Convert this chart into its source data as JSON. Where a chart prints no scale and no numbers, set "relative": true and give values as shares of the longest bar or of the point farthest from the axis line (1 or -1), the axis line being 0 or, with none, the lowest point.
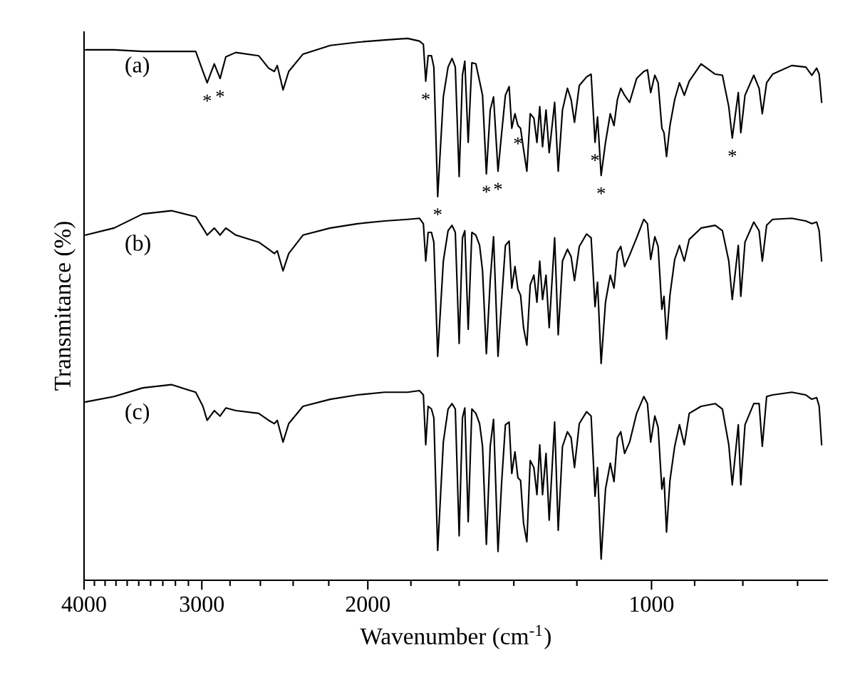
{
  "chart_data": {
    "type": "line",
    "xlabel": "Wavenumber (cm$^{-1}$)",
    "ylabel": "Transmitance (%)",
    "relative": true,
    "log": "x",
    "xlim": [
      4000,
      650
    ],
    "xticks": [
      4000,
      {
        "value": 3900,
        "label": null
      },
      {
        "value": 3800,
        "label": null
      },
      {
        "value": 3700,
        "label": null
      },
      {
        "value": 3600,
        "label": null
      },
      {
        "value": 3500,
        "label": null
      },
      {
        "value": 3400,
        "label": null
      },
      {
        "value": 3300,
        "label": null
      },
      {
        "value": 3200,
        "label": null
      },
      {
        "value": 3100,
        "label": null
      },
      3000,
      {
        "value": 2800,
        "label": null
      },
      {
        "value": 2600,
        "label": null
      },
      {
        "value": 2400,
        "label": null
      },
      {
        "value": 2200,
        "label": null
      },
      2000,
      {
        "value": 1800,
        "label": null
      },
      {
        "value": 1600,
        "label": null
      },
      {
        "value": 1400,
        "label": null
      },
      {
        "value": 1200,
        "label": null
      },
      1000,
      {
        "value": 900,
        "label": null
      },
      {
        "value": 800,
        "label": null
      },
      {
        "value": 700,
        "label": null
      }
    ],
    "x": [
      3986,
      3717,
      3466,
      3232,
      3045,
      2992,
      2961,
      2910,
      2869,
      2829,
      2761,
      2611,
      2548,
      2513,
      2495,
      2460,
      2426,
      2343,
      2192,
      2051,
      1920,
      1815,
      1763,
      1746,
      1736,
      1726,
      1712,
      1702,
      1686,
      1663,
      1644,
      1628,
      1615,
      1600,
      1587,
      1578,
      1565,
      1551,
      1536,
      1522,
      1511,
      1497,
      1483,
      1471,
      1455,
      1442,
      1429,
      1416,
      1407,
      1396,
      1386,
      1377,
      1367,
      1356,
      1345,
      1333,
      1323,
      1314,
      1305,
      1294,
      1284,
      1267,
      1256,
      1243,
      1228,
      1217,
      1207,
      1193,
      1172,
      1159,
      1148,
      1141,
      1131,
      1119,
      1106,
      1096,
      1087,
      1078,
      1068,
      1055,
      1037,
      1019,
      1010,
      1002,
      992,
      984,
      975,
      970,
      964,
      956,
      945,
      934,
      923,
      912,
      886,
      856,
      841,
      828,
      821,
      809,
      804,
      796,
      779,
      769,
      763,
      755,
      744,
      710,
      686,
      676,
      668,
      664,
      660
    ],
    "series": [
      {
        "name": "(a)",
        "color": "#000000",
        "values": [
          0.979,
          0.979,
          0.976,
          0.976,
          0.976,
          0.939,
          0.918,
          0.953,
          0.926,
          0.966,
          0.974,
          0.968,
          0.945,
          0.939,
          0.95,
          0.905,
          0.939,
          0.971,
          0.987,
          0.993,
          0.997,
          1.0,
          0.995,
          0.989,
          0.921,
          0.968,
          0.968,
          0.947,
          0.708,
          0.892,
          0.947,
          0.963,
          0.947,
          0.745,
          0.932,
          0.958,
          0.808,
          0.955,
          0.953,
          0.921,
          0.895,
          0.75,
          0.868,
          0.892,
          0.755,
          0.826,
          0.895,
          0.911,
          0.834,
          0.861,
          0.839,
          0.834,
          0.795,
          0.755,
          0.861,
          0.853,
          0.808,
          0.874,
          0.8,
          0.868,
          0.789,
          0.882,
          0.755,
          0.868,
          0.908,
          0.887,
          0.845,
          0.913,
          0.929,
          0.934,
          0.808,
          0.855,
          0.747,
          0.808,
          0.861,
          0.839,
          0.887,
          0.908,
          0.895,
          0.882,
          0.926,
          0.939,
          0.942,
          0.9,
          0.932,
          0.918,
          0.834,
          0.826,
          0.782,
          0.839,
          0.887,
          0.918,
          0.895,
          0.921,
          0.953,
          0.934,
          0.932,
          0.874,
          0.816,
          0.9,
          0.826,
          0.895,
          0.932,
          0.908,
          0.861,
          0.918,
          0.934,
          0.95,
          0.947,
          0.932,
          0.945,
          0.934,
          0.882
        ]
      },
      {
        "name": "(b)",
        "color": "#000000",
        "values": [
          0.637,
          0.65,
          0.676,
          0.682,
          0.671,
          0.65,
          0.637,
          0.65,
          0.637,
          0.65,
          0.637,
          0.624,
          0.611,
          0.603,
          0.608,
          0.571,
          0.603,
          0.637,
          0.65,
          0.658,
          0.663,
          0.666,
          0.668,
          0.658,
          0.589,
          0.642,
          0.642,
          0.624,
          0.413,
          0.589,
          0.645,
          0.655,
          0.642,
          0.437,
          0.632,
          0.645,
          0.463,
          0.642,
          0.637,
          0.618,
          0.571,
          0.418,
          0.553,
          0.634,
          0.413,
          0.518,
          0.618,
          0.626,
          0.539,
          0.579,
          0.537,
          0.526,
          0.466,
          0.434,
          0.545,
          0.563,
          0.513,
          0.589,
          0.518,
          0.563,
          0.466,
          0.632,
          0.453,
          0.589,
          0.611,
          0.597,
          0.553,
          0.616,
          0.639,
          0.632,
          0.505,
          0.55,
          0.4,
          0.513,
          0.563,
          0.539,
          0.605,
          0.616,
          0.579,
          0.6,
          0.632,
          0.666,
          0.658,
          0.592,
          0.634,
          0.616,
          0.5,
          0.524,
          0.445,
          0.526,
          0.592,
          0.618,
          0.589,
          0.629,
          0.65,
          0.655,
          0.645,
          0.589,
          0.518,
          0.618,
          0.524,
          0.624,
          0.661,
          0.645,
          0.589,
          0.655,
          0.666,
          0.668,
          0.663,
          0.658,
          0.661,
          0.645,
          0.589
        ]
      },
      {
        "name": "(c)",
        "color": "#000000",
        "values": [
          0.329,
          0.339,
          0.355,
          0.361,
          0.347,
          0.321,
          0.295,
          0.313,
          0.303,
          0.318,
          0.313,
          0.308,
          0.295,
          0.289,
          0.295,
          0.255,
          0.289,
          0.321,
          0.334,
          0.342,
          0.347,
          0.347,
          0.35,
          0.342,
          0.25,
          0.321,
          0.316,
          0.3,
          0.055,
          0.255,
          0.316,
          0.326,
          0.316,
          0.082,
          0.3,
          0.318,
          0.108,
          0.316,
          0.308,
          0.289,
          0.247,
          0.066,
          0.247,
          0.297,
          0.053,
          0.182,
          0.287,
          0.292,
          0.197,
          0.237,
          0.189,
          0.184,
          0.105,
          0.071,
          0.221,
          0.208,
          0.158,
          0.25,
          0.158,
          0.234,
          0.111,
          0.292,
          0.092,
          0.247,
          0.274,
          0.263,
          0.208,
          0.289,
          0.311,
          0.303,
          0.155,
          0.208,
          0.039,
          0.168,
          0.216,
          0.182,
          0.263,
          0.274,
          0.234,
          0.255,
          0.308,
          0.339,
          0.326,
          0.255,
          0.303,
          0.282,
          0.168,
          0.189,
          0.089,
          0.184,
          0.247,
          0.287,
          0.25,
          0.308,
          0.321,
          0.326,
          0.316,
          0.25,
          0.176,
          0.287,
          0.176,
          0.287,
          0.326,
          0.326,
          0.247,
          0.339,
          0.342,
          0.347,
          0.342,
          0.334,
          0.337,
          0.321,
          0.25
        ]
      }
    ],
    "annotations": [
      {
        "text": "*",
        "x": 2961,
        "y": 0.918
      },
      {
        "text": "*",
        "x": 2869,
        "y": 0.926
      },
      {
        "text": "*",
        "x": 1736,
        "y": 0.921
      },
      {
        "text": "*",
        "x": 1686,
        "y": 0.708
      },
      {
        "text": "*",
        "x": 1497,
        "y": 0.75
      },
      {
        "text": "*",
        "x": 1455,
        "y": 0.755
      },
      {
        "text": "*",
        "x": 1386,
        "y": 0.839
      },
      {
        "text": "*",
        "x": 1148,
        "y": 0.808
      },
      {
        "text": "*",
        "x": 1131,
        "y": 0.747
      },
      {
        "text": "*",
        "x": 821,
        "y": 0.816
      }
    ]
  }
}
